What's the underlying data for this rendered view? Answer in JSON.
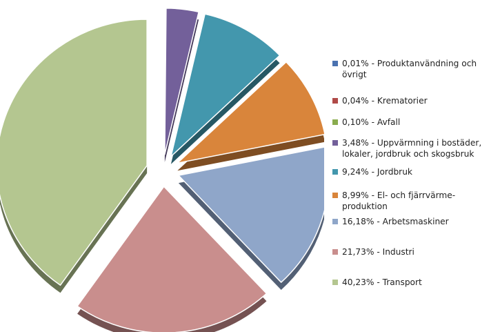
{
  "chart_data": {
    "type": "pie",
    "title": "",
    "legend_position": "right",
    "categories": [
      "Produktanvändning och övrigt",
      "Krematorier",
      "Avfall",
      "Uppvärmning i bostäder, lokaler, jordbruk och skogsbruk",
      "Jordbruk",
      "El- och fjärrvärmeproduktion",
      "Arbetsmaskiner",
      "Industri",
      "Transport"
    ],
    "values": [
      0.01,
      0.04,
      0.1,
      3.48,
      9.24,
      8.99,
      16.18,
      21.73,
      40.23
    ],
    "colors": [
      "#4a72b0",
      "#b04a48",
      "#8aac4e",
      "#73609a",
      "#4397ad",
      "#d9853b",
      "#8fa6c9",
      "#c98e8d",
      "#b4c690"
    ],
    "exploded": true,
    "legend": [
      {
        "lines": [
          "0,01% - Produktanvändning och",
          "övrigt"
        ]
      },
      {
        "lines": [
          "0,04% - Krematorier"
        ]
      },
      {
        "lines": [
          "0,10% - Avfall"
        ]
      },
      {
        "lines": [
          "3,48% - Uppvärmning i bostäder,",
          "lokaler, jordbruk och skogsbruk"
        ]
      },
      {
        "lines": [
          "9,24% - Jordbruk"
        ]
      },
      {
        "lines": [
          "8,99% - El- och fjärrvärme-",
          "produktion"
        ]
      },
      {
        "lines": [
          "16,18% - Arbetsmaskiner"
        ]
      },
      {
        "lines": [
          "21,73% - Industri"
        ]
      },
      {
        "lines": [
          "40,23% - Transport"
        ]
      }
    ]
  }
}
